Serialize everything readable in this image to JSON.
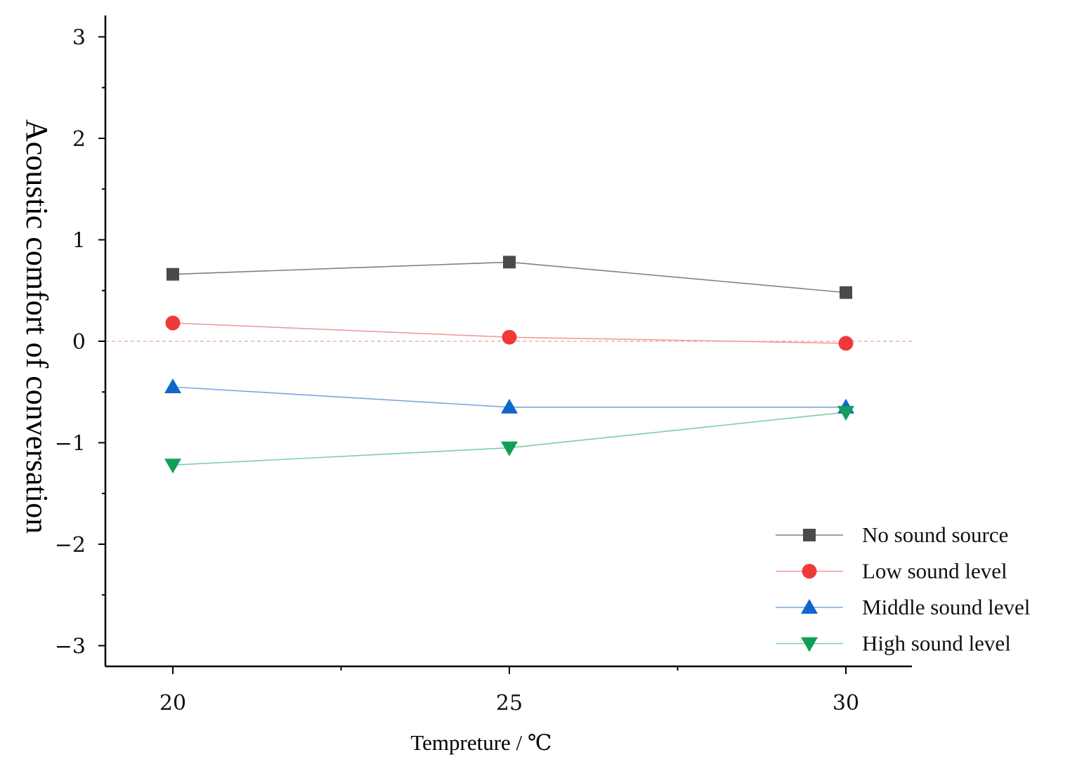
{
  "chart_data": {
    "type": "line",
    "title": "",
    "xlabel": "Tempreture / ℃",
    "ylabel": "Acoustic comfort of conversation",
    "x": [
      20,
      25,
      30
    ],
    "xlim": [
      19,
      31
    ],
    "ylim": [
      -3.2,
      3.2
    ],
    "xticks": [
      20,
      25,
      30
    ],
    "xtick_labels": [
      "20",
      "25",
      "30"
    ],
    "yticks": [
      -3,
      -2,
      -1,
      0,
      1,
      2,
      3
    ],
    "ytick_labels": [
      "−3",
      "−2",
      "−1",
      "0",
      "1",
      "2",
      "3"
    ],
    "reference_line": 0,
    "grid": false,
    "legend_position": "bottom-right",
    "series": [
      {
        "name": "No sound source",
        "marker": "square",
        "color": "#4a4a4a",
        "line_color": "#808080",
        "values": [
          0.66,
          0.78,
          0.48
        ]
      },
      {
        "name": "Low sound level",
        "marker": "circle",
        "color": "#f03a3a",
        "line_color": "#f29a9a",
        "values": [
          0.18,
          0.04,
          -0.02
        ]
      },
      {
        "name": "Middle sound level",
        "marker": "triangle-up",
        "color": "#1166cc",
        "line_color": "#7ba6dd",
        "values": [
          -0.45,
          -0.65,
          -0.65
        ]
      },
      {
        "name": "High sound level",
        "marker": "triangle-down",
        "color": "#129e58",
        "line_color": "#7ccfa6",
        "values": [
          -1.22,
          -1.05,
          -0.7
        ]
      }
    ]
  }
}
